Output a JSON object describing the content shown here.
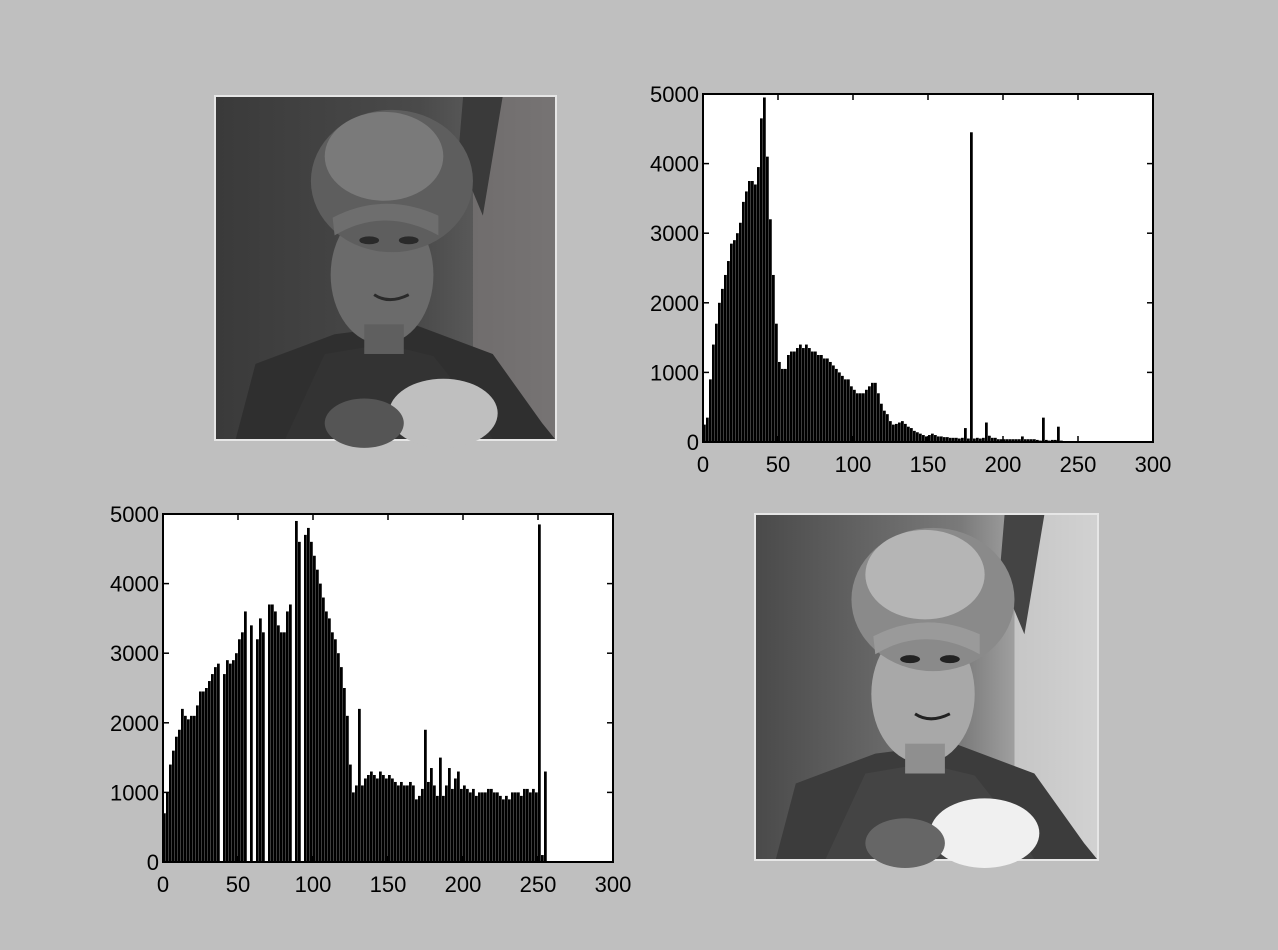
{
  "colors": {
    "background": "#bfbfbf",
    "plot_area": "#ffffff",
    "bars": "#000000"
  },
  "panels": {
    "original_image": {
      "icon": "grayscale-portrait-photo-low-contrast"
    },
    "equalized_image": {
      "icon": "grayscale-portrait-photo-high-contrast"
    }
  },
  "chart_data": [
    {
      "type": "bar",
      "xlim": [
        0,
        300
      ],
      "ylim": [
        0,
        5000
      ],
      "x_ticks": [
        0,
        50,
        100,
        150,
        200,
        250,
        300
      ],
      "y_ticks": [
        0,
        1000,
        2000,
        3000,
        4000,
        5000
      ],
      "grid": false,
      "x": [
        0,
        2,
        4,
        6,
        8,
        10,
        12,
        14,
        16,
        18,
        20,
        22,
        24,
        26,
        28,
        30,
        32,
        34,
        36,
        38,
        40,
        42,
        44,
        46,
        48,
        50,
        52,
        54,
        56,
        58,
        60,
        62,
        64,
        66,
        68,
        70,
        72,
        74,
        76,
        78,
        80,
        82,
        84,
        86,
        88,
        90,
        92,
        94,
        96,
        98,
        100,
        102,
        104,
        106,
        108,
        110,
        112,
        114,
        116,
        118,
        120,
        122,
        124,
        126,
        128,
        130,
        132,
        134,
        136,
        138,
        140,
        142,
        144,
        146,
        148,
        150,
        152,
        154,
        156,
        158,
        160,
        162,
        164,
        166,
        168,
        170,
        172,
        174,
        176,
        178,
        180,
        182,
        184,
        186,
        188,
        190,
        192,
        194,
        196,
        198,
        200,
        202,
        204,
        206,
        208,
        210,
        212,
        214,
        216,
        218,
        220,
        222,
        224,
        226,
        228,
        230,
        232,
        234,
        236,
        238,
        240,
        242,
        244,
        246,
        248,
        250,
        252,
        254
      ],
      "values": [
        250,
        350,
        900,
        1400,
        1700,
        2000,
        2200,
        2400,
        2600,
        2850,
        2900,
        3000,
        3150,
        3450,
        3600,
        3750,
        3750,
        3700,
        3950,
        4650,
        4950,
        4100,
        3200,
        2400,
        1700,
        1150,
        1050,
        1050,
        1250,
        1300,
        1300,
        1350,
        1400,
        1350,
        1400,
        1350,
        1300,
        1300,
        1250,
        1250,
        1200,
        1200,
        1150,
        1100,
        1050,
        1000,
        950,
        900,
        900,
        800,
        750,
        700,
        700,
        700,
        750,
        800,
        850,
        850,
        700,
        550,
        450,
        400,
        300,
        250,
        260,
        280,
        300,
        260,
        220,
        200,
        160,
        140,
        120,
        100,
        80,
        100,
        120,
        100,
        80,
        80,
        70,
        70,
        60,
        60,
        60,
        50,
        60,
        200,
        50,
        4450,
        50,
        60,
        50,
        60,
        280,
        90,
        60,
        60,
        40,
        40,
        40,
        40,
        40,
        40,
        40,
        40,
        80,
        40,
        40,
        40,
        40,
        30,
        20,
        350,
        30,
        20,
        30,
        30,
        220,
        20,
        10,
        10,
        10,
        10,
        10,
        10,
        10,
        10
      ]
    },
    {
      "type": "bar",
      "xlim": [
        0,
        300
      ],
      "ylim": [
        0,
        5000
      ],
      "x_ticks": [
        0,
        50,
        100,
        150,
        200,
        250,
        300
      ],
      "y_ticks": [
        0,
        1000,
        2000,
        3000,
        4000,
        5000
      ],
      "grid": false,
      "x": [
        0,
        2,
        4,
        6,
        8,
        10,
        12,
        14,
        16,
        18,
        20,
        22,
        24,
        26,
        28,
        30,
        32,
        34,
        36,
        38,
        40,
        42,
        44,
        46,
        48,
        50,
        52,
        54,
        56,
        58,
        60,
        62,
        64,
        66,
        68,
        70,
        72,
        74,
        76,
        78,
        80,
        82,
        84,
        86,
        88,
        90,
        92,
        94,
        96,
        98,
        100,
        102,
        104,
        106,
        108,
        110,
        112,
        114,
        116,
        118,
        120,
        122,
        124,
        126,
        128,
        130,
        132,
        134,
        136,
        138,
        140,
        142,
        144,
        146,
        148,
        150,
        152,
        154,
        156,
        158,
        160,
        162,
        164,
        166,
        168,
        170,
        172,
        174,
        176,
        178,
        180,
        182,
        184,
        186,
        188,
        190,
        192,
        194,
        196,
        198,
        200,
        202,
        204,
        206,
        208,
        210,
        212,
        214,
        216,
        218,
        220,
        222,
        224,
        226,
        228,
        230,
        232,
        234,
        236,
        238,
        240,
        242,
        244,
        246,
        248,
        250,
        252,
        254
      ],
      "values": [
        700,
        1000,
        1400,
        1600,
        1800,
        1900,
        2200,
        2100,
        2050,
        2100,
        2100,
        2250,
        2450,
        2450,
        2500,
        2600,
        2700,
        2800,
        2850,
        0,
        2700,
        2900,
        2850,
        2900,
        3000,
        3200,
        3300,
        3600,
        0,
        3400,
        0,
        3200,
        3500,
        3300,
        0,
        3700,
        3700,
        3600,
        3400,
        3300,
        3300,
        3600,
        3700,
        0,
        4900,
        4600,
        0,
        4700,
        4800,
        4600,
        4400,
        4200,
        4000,
        3800,
        3600,
        3500,
        3300,
        3200,
        3000,
        2800,
        2500,
        2100,
        1400,
        1000,
        1100,
        2200,
        1100,
        1200,
        1250,
        1300,
        1250,
        1200,
        1300,
        1250,
        1200,
        1250,
        1200,
        1150,
        1100,
        1150,
        1100,
        1100,
        1150,
        1100,
        900,
        950,
        1050,
        1900,
        1150,
        1350,
        1100,
        950,
        1500,
        950,
        1100,
        1350,
        1050,
        1200,
        1300,
        1050,
        1100,
        1050,
        1000,
        1050,
        950,
        1000,
        1000,
        1000,
        1050,
        1050,
        1000,
        1000,
        950,
        900,
        950,
        900,
        1000,
        1000,
        1000,
        950,
        1050,
        1050,
        1000,
        1050,
        1000,
        4850,
        100,
        1300
      ]
    }
  ]
}
